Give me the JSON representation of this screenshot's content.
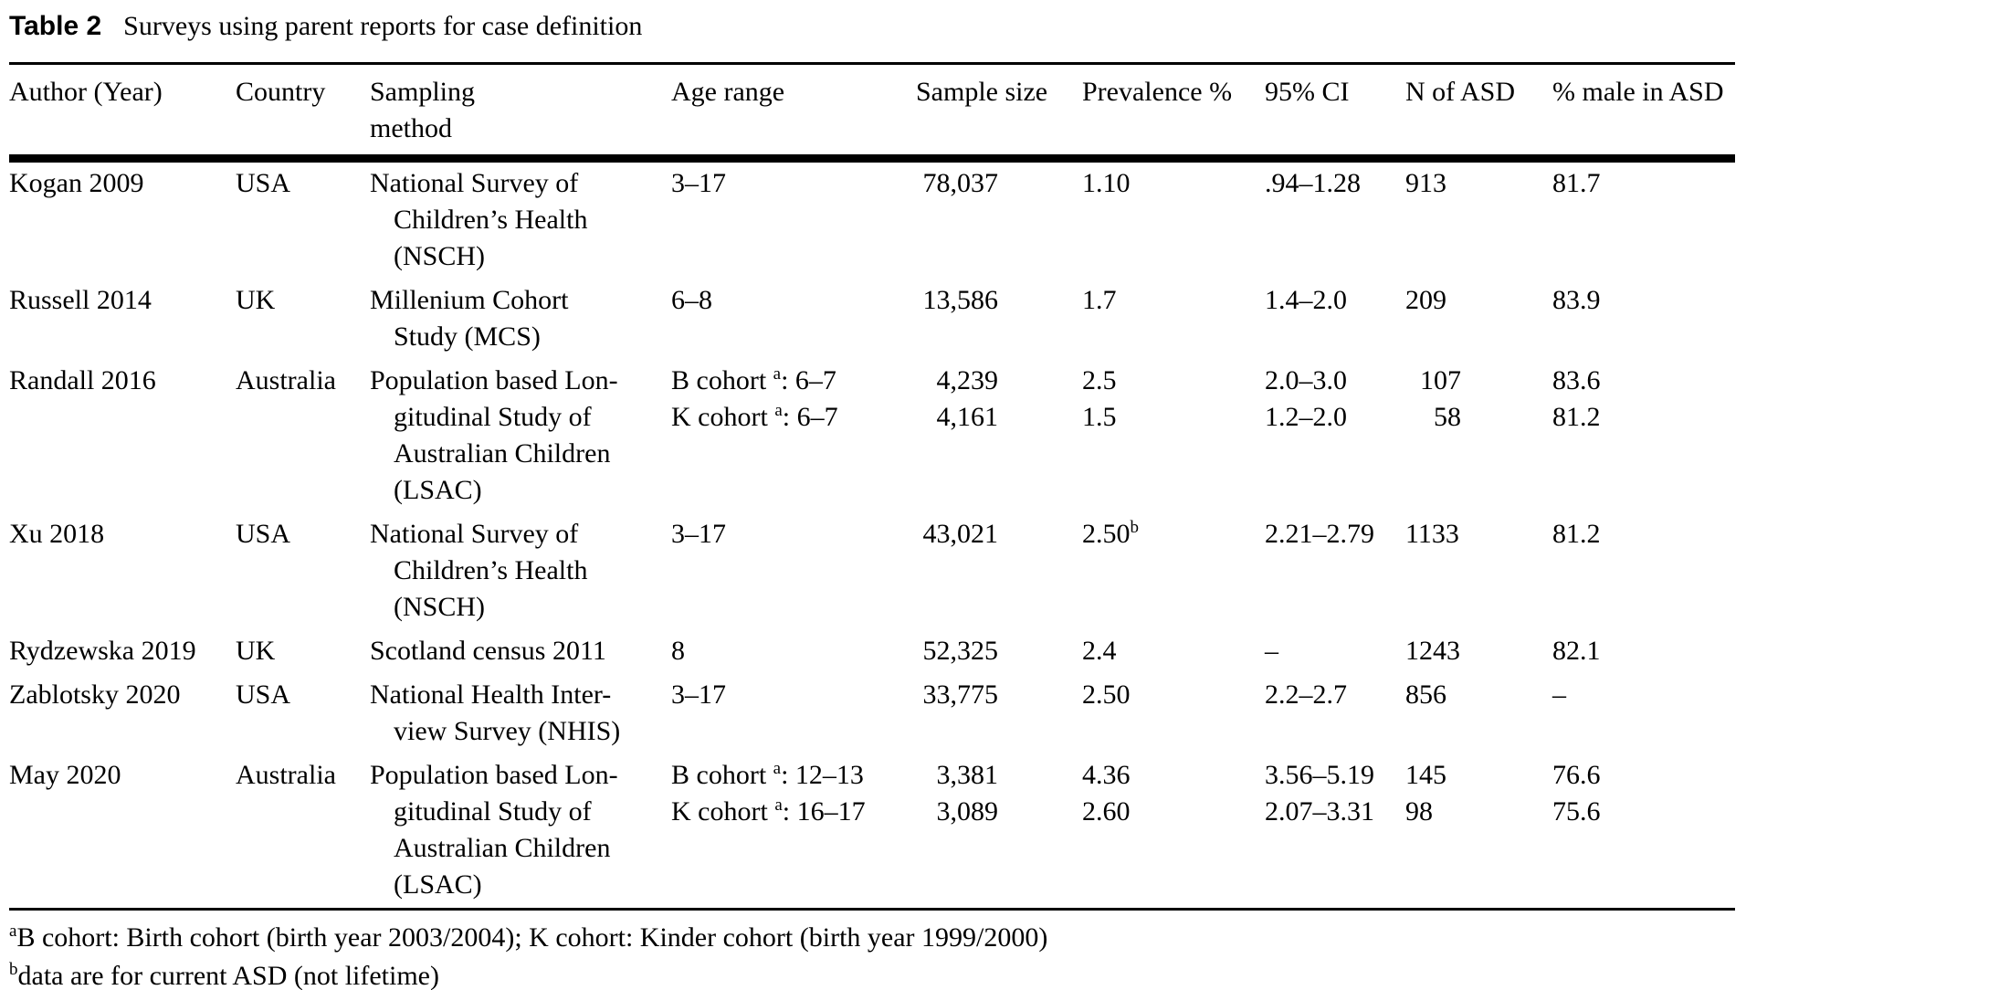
{
  "caption": {
    "label": "Table 2",
    "text": "Surveys using parent reports for case definition"
  },
  "table": {
    "columns": [
      {
        "label": "Author (Year)"
      },
      {
        "label": "Country"
      },
      {
        "label": "Sampling\nmethod"
      },
      {
        "label": "Age range"
      },
      {
        "label": "Sample size"
      },
      {
        "label": "Prevalence %"
      },
      {
        "label": "95% CI"
      },
      {
        "label": "N of ASD"
      },
      {
        "label": "% male in ASD"
      }
    ],
    "rows": [
      {
        "author": "Kogan 2009",
        "country": "USA",
        "sampling_lines": [
          "National Survey of",
          "Children’s Health",
          "(NSCH)"
        ],
        "entries": [
          {
            "age_pre": "3–17",
            "age_sup": "",
            "age_post": "",
            "sample_size": "78,037",
            "prevalence": "1.10",
            "prevalence_sup": "",
            "ci": ".94–1.28",
            "n_asd": "913",
            "n_asd_align": "left",
            "pct_male": "81.7"
          }
        ]
      },
      {
        "author": "Russell 2014",
        "country": "UK",
        "sampling_lines": [
          "Millenium Cohort",
          "Study (MCS)"
        ],
        "entries": [
          {
            "age_pre": "6–8",
            "age_sup": "",
            "age_post": "",
            "sample_size": "13,586",
            "prevalence": "1.7",
            "prevalence_sup": "",
            "ci": "1.4–2.0",
            "n_asd": "209",
            "n_asd_align": "left",
            "pct_male": "83.9"
          }
        ]
      },
      {
        "author": "Randall 2016",
        "country": "Australia",
        "sampling_lines": [
          "Population based Lon-",
          "gitudinal Study of",
          "Australian Children",
          "(LSAC)"
        ],
        "entries": [
          {
            "age_pre": "B cohort ",
            "age_sup": "a",
            "age_post": ": 6–7",
            "sample_size": "4,239",
            "prevalence": "2.5",
            "prevalence_sup": "",
            "ci": "2.0–3.0",
            "n_asd": "107",
            "n_asd_align": "right",
            "pct_male": "83.6"
          },
          {
            "age_pre": "K cohort ",
            "age_sup": "a",
            "age_post": ": 6–7",
            "sample_size": "4,161",
            "prevalence": "1.5",
            "prevalence_sup": "",
            "ci": "1.2–2.0",
            "n_asd": "58",
            "n_asd_align": "right",
            "pct_male": "81.2"
          }
        ]
      },
      {
        "author": "Xu 2018",
        "country": "USA",
        "sampling_lines": [
          "National Survey of",
          "Children’s Health",
          "(NSCH)"
        ],
        "entries": [
          {
            "age_pre": "3–17",
            "age_sup": "",
            "age_post": "",
            "sample_size": "43,021",
            "prevalence": "2.50",
            "prevalence_sup": "b",
            "ci": "2.21–2.79",
            "n_asd": "1133",
            "n_asd_align": "left",
            "pct_male": "81.2"
          }
        ]
      },
      {
        "author": "Rydzewska 2019",
        "country": "UK",
        "sampling_lines": [
          "Scotland census 2011"
        ],
        "entries": [
          {
            "age_pre": "8",
            "age_sup": "",
            "age_post": "",
            "sample_size": "52,325",
            "prevalence": "2.4",
            "prevalence_sup": "",
            "ci": "–",
            "n_asd": "1243",
            "n_asd_align": "left",
            "pct_male": "82.1"
          }
        ]
      },
      {
        "author": "Zablotsky 2020",
        "country": "USA",
        "sampling_lines": [
          "National Health Inter-",
          "view Survey (NHIS)"
        ],
        "entries": [
          {
            "age_pre": "3–17",
            "age_sup": "",
            "age_post": "",
            "sample_size": "33,775",
            "prevalence": "2.50",
            "prevalence_sup": "",
            "ci": "2.2–2.7",
            "n_asd": "856",
            "n_asd_align": "left",
            "pct_male": "–"
          }
        ]
      },
      {
        "author": "May 2020",
        "country": "Australia",
        "sampling_lines": [
          "Population based Lon-",
          "gitudinal Study of",
          "Australian Children",
          "(LSAC)"
        ],
        "entries": [
          {
            "age_pre": "B cohort ",
            "age_sup": "a",
            "age_post": ": 12–13",
            "sample_size": "3,381",
            "prevalence": "4.36",
            "prevalence_sup": "",
            "ci": "3.56–5.19",
            "n_asd": "145",
            "n_asd_align": "left",
            "pct_male": "76.6"
          },
          {
            "age_pre": "K cohort ",
            "age_sup": "a",
            "age_post": ": 16–17",
            "sample_size": "3,089",
            "prevalence": "2.60",
            "prevalence_sup": "",
            "ci": "2.07–3.31",
            "n_asd": "98",
            "n_asd_align": "left",
            "pct_male": "75.6"
          }
        ]
      }
    ]
  },
  "footnotes": [
    {
      "marker": "a",
      "text": "B cohort: Birth cohort (birth year 2003/2004); K cohort: Kinder cohort (birth year 1999/2000)"
    },
    {
      "marker": "b",
      "text": "data are for current ASD (not lifetime)"
    }
  ]
}
